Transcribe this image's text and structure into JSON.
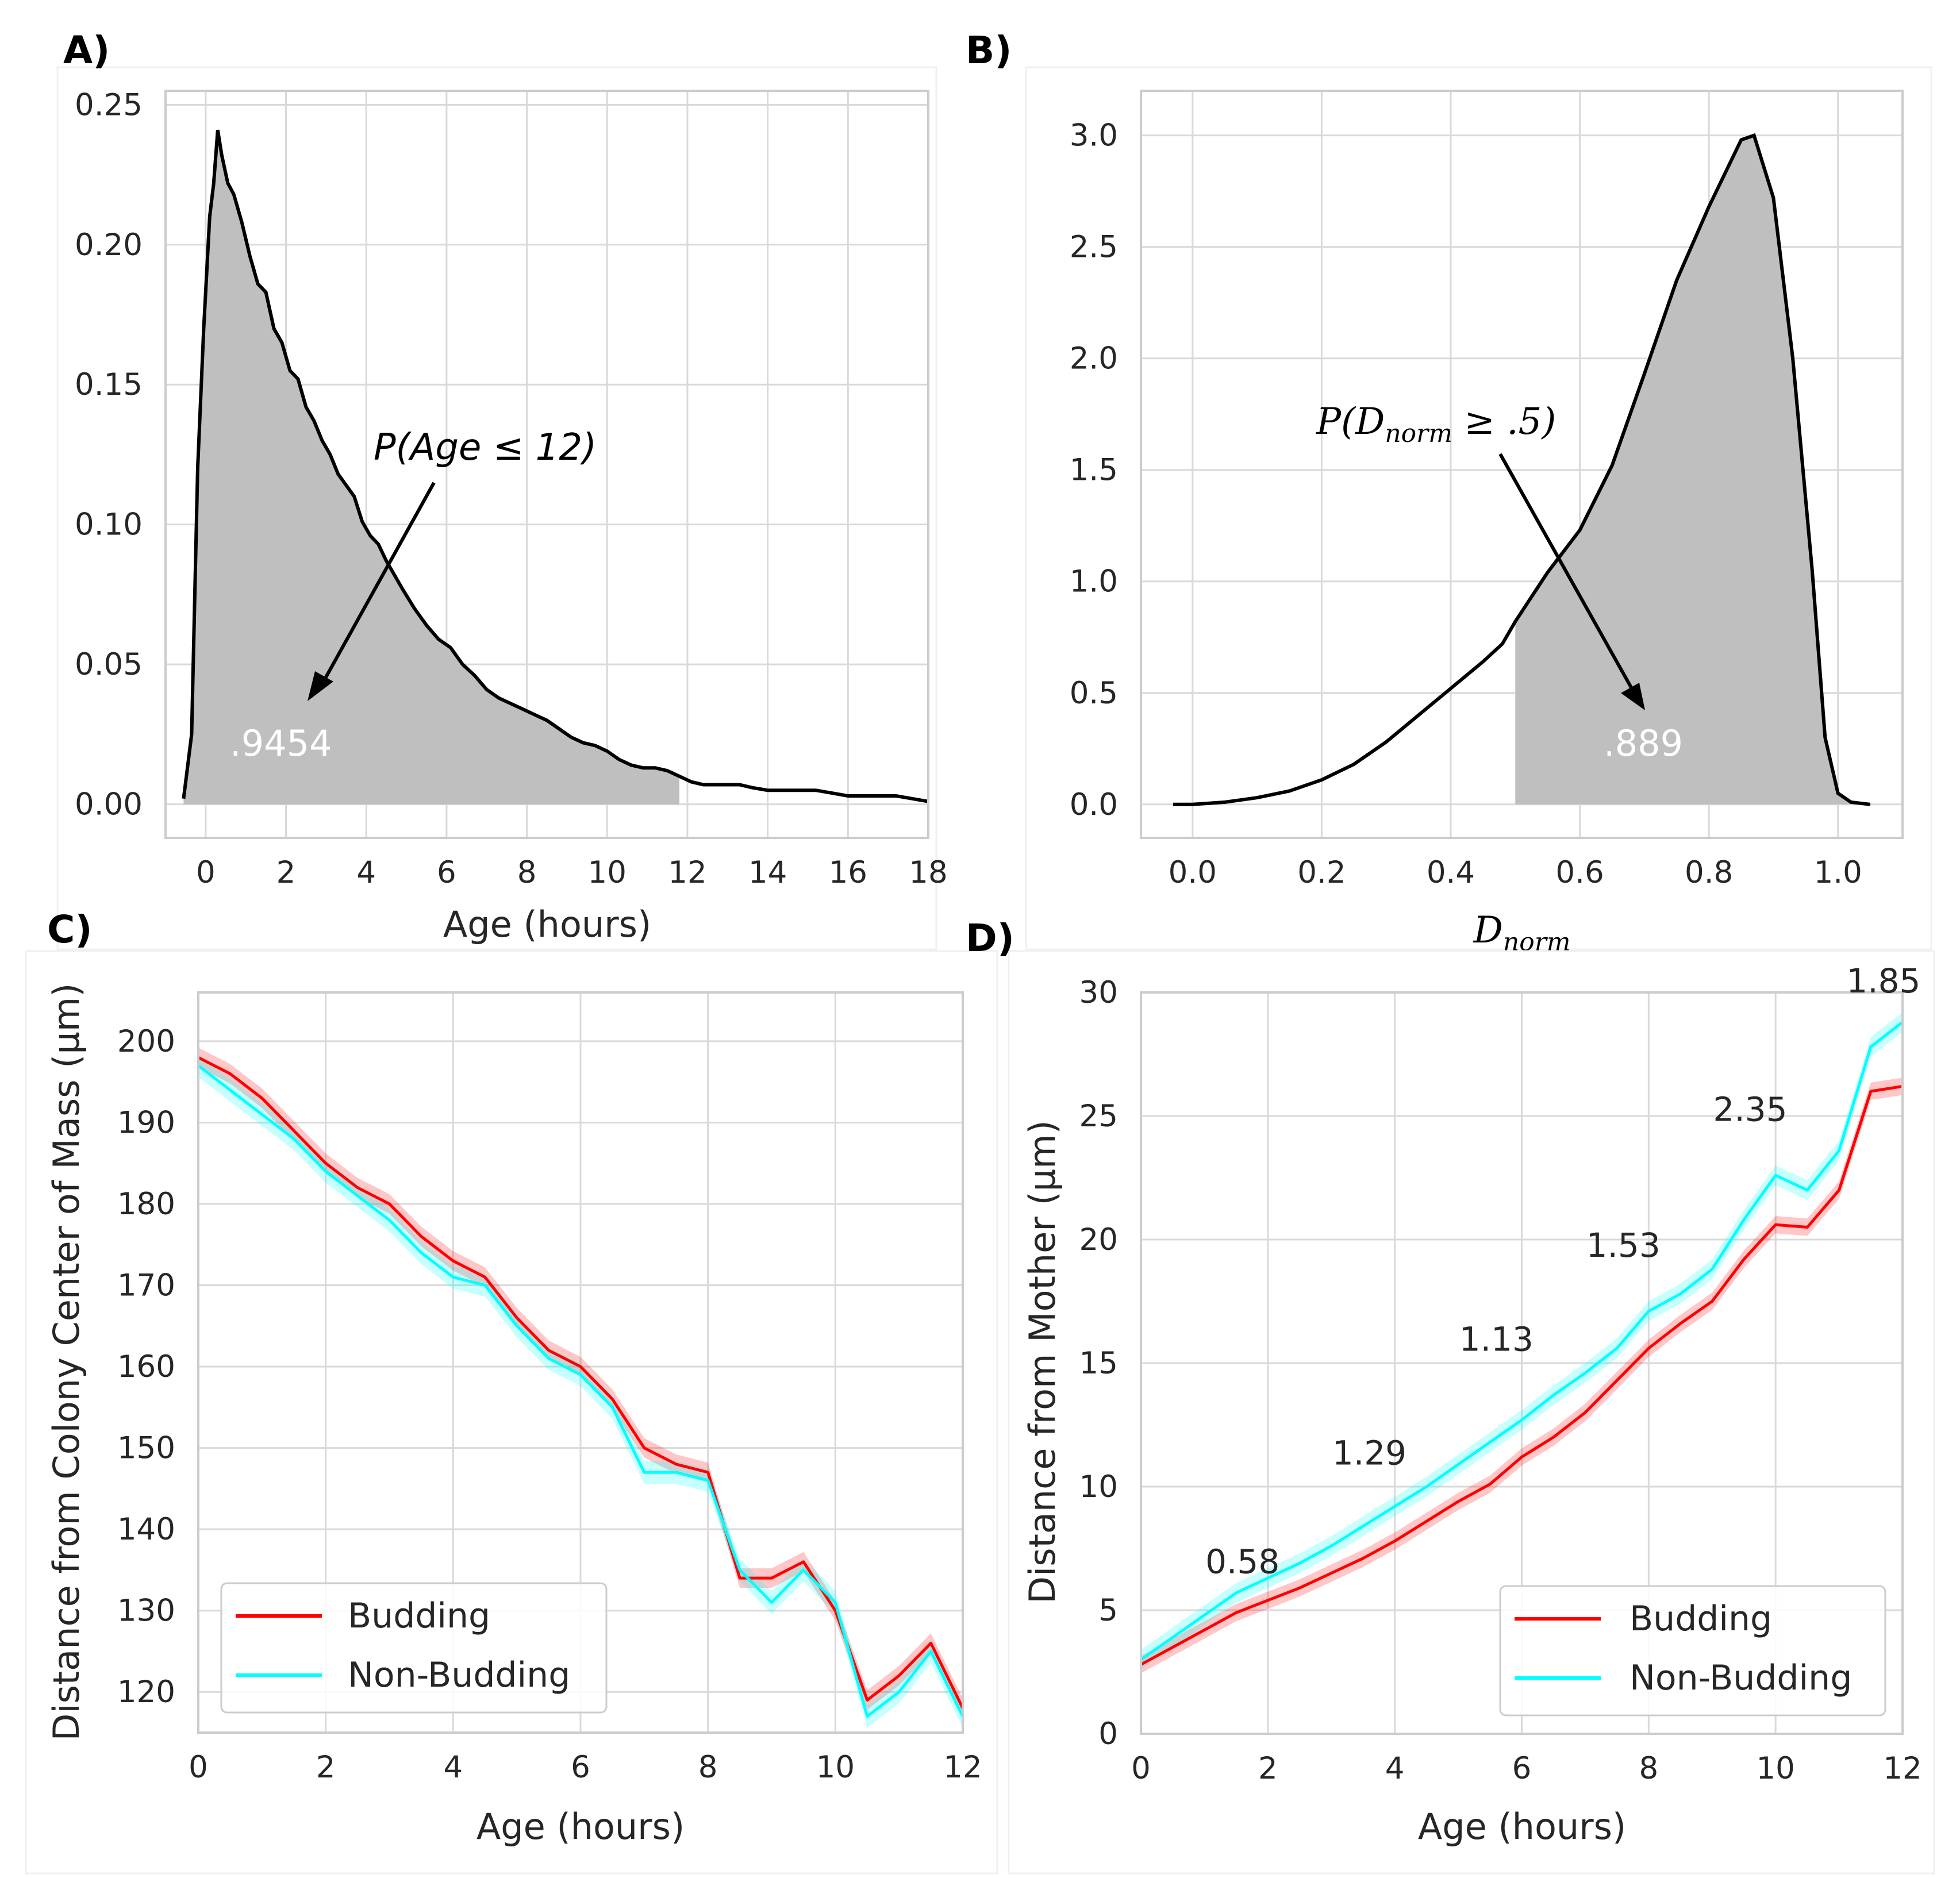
{
  "chart_data": [
    {
      "id": "A",
      "panel_label": "A)",
      "type": "area",
      "xlabel": "Age (hours)",
      "ylabel": "",
      "xlim": [
        -1,
        18
      ],
      "ylim": [
        -0.012,
        0.255
      ],
      "xticks": [
        0,
        2,
        4,
        6,
        8,
        10,
        12,
        14,
        16,
        18
      ],
      "yticks": [
        "0.00",
        "0.05",
        "0.10",
        "0.15",
        "0.20",
        "0.25"
      ],
      "grid": true,
      "fill_until": 11.8,
      "annotation": {
        "prefix": "P(Age ≤ 12)",
        "value": ".9454"
      },
      "curve": {
        "x": [
          -0.55,
          -0.35,
          -0.2,
          -0.05,
          0.1,
          0.2,
          0.3,
          0.4,
          0.55,
          0.7,
          0.9,
          1.1,
          1.3,
          1.5,
          1.7,
          1.9,
          2.1,
          2.3,
          2.5,
          2.7,
          2.9,
          3.1,
          3.3,
          3.5,
          3.7,
          3.9,
          4.1,
          4.3,
          4.5,
          4.7,
          4.9,
          5.2,
          5.5,
          5.8,
          6.1,
          6.4,
          6.7,
          7.0,
          7.3,
          7.6,
          7.9,
          8.2,
          8.5,
          8.8,
          9.1,
          9.4,
          9.7,
          10.0,
          10.3,
          10.6,
          10.9,
          11.2,
          11.5,
          11.8,
          12.1,
          12.4,
          12.7,
          13.0,
          13.3,
          13.6,
          14.0,
          14.4,
          14.8,
          15.2,
          15.6,
          16.0,
          16.4,
          16.8,
          17.2,
          17.6,
          18.0
        ],
        "y": [
          0.002,
          0.025,
          0.12,
          0.17,
          0.21,
          0.222,
          0.241,
          0.232,
          0.222,
          0.218,
          0.208,
          0.196,
          0.186,
          0.183,
          0.17,
          0.165,
          0.155,
          0.152,
          0.142,
          0.137,
          0.13,
          0.125,
          0.118,
          0.114,
          0.11,
          0.101,
          0.096,
          0.093,
          0.087,
          0.082,
          0.077,
          0.07,
          0.064,
          0.059,
          0.056,
          0.05,
          0.046,
          0.041,
          0.038,
          0.036,
          0.034,
          0.032,
          0.03,
          0.027,
          0.024,
          0.022,
          0.021,
          0.019,
          0.016,
          0.014,
          0.013,
          0.013,
          0.012,
          0.01,
          0.008,
          0.007,
          0.007,
          0.007,
          0.007,
          0.006,
          0.005,
          0.005,
          0.005,
          0.005,
          0.004,
          0.003,
          0.003,
          0.003,
          0.003,
          0.002,
          0.001
        ]
      }
    },
    {
      "id": "B",
      "panel_label": "B)",
      "type": "area",
      "xlabel": "D_norm",
      "xlabel_main": "D",
      "xlabel_sub": "norm",
      "ylabel": "",
      "xlim": [
        -0.08,
        1.1
      ],
      "ylim": [
        -0.15,
        3.2
      ],
      "xticks": [
        "0.0",
        "0.2",
        "0.4",
        "0.6",
        "0.8",
        "1.0"
      ],
      "xtick_values": [
        0,
        0.2,
        0.4,
        0.6,
        0.8,
        1.0
      ],
      "yticks": [
        "0.0",
        "0.5",
        "1.0",
        "1.5",
        "2.0",
        "2.5",
        "3.0"
      ],
      "ytick_values": [
        0,
        0.5,
        1.0,
        1.5,
        2.0,
        2.5,
        3.0
      ],
      "grid": true,
      "fill_from": 0.5,
      "annotation": {
        "prefix_main": "P(D",
        "prefix_sub": "norm",
        "prefix_rest": " ≥ .5)",
        "value": ".889"
      },
      "curve": {
        "x": [
          -0.03,
          0.0,
          0.05,
          0.1,
          0.15,
          0.2,
          0.25,
          0.3,
          0.35,
          0.4,
          0.45,
          0.48,
          0.5,
          0.55,
          0.6,
          0.65,
          0.7,
          0.75,
          0.8,
          0.85,
          0.87,
          0.9,
          0.93,
          0.96,
          0.98,
          1.0,
          1.02,
          1.05
        ],
        "y": [
          0.0,
          0.0,
          0.01,
          0.03,
          0.06,
          0.11,
          0.18,
          0.28,
          0.4,
          0.52,
          0.64,
          0.72,
          0.82,
          1.04,
          1.23,
          1.52,
          1.93,
          2.35,
          2.68,
          2.98,
          3.0,
          2.72,
          2.0,
          1.05,
          0.3,
          0.05,
          0.01,
          0.0
        ]
      }
    },
    {
      "id": "C",
      "panel_label": "C)",
      "type": "line",
      "xlabel": "Age (hours)",
      "ylabel": "Distance from Colony Center of Mass (μm)",
      "xlim": [
        0,
        12
      ],
      "ylim": [
        115,
        206
      ],
      "xticks": [
        0,
        2,
        4,
        6,
        8,
        10,
        12
      ],
      "yticks": [
        120,
        130,
        140,
        150,
        160,
        170,
        180,
        190,
        200
      ],
      "grid": true,
      "legend": "lower-left",
      "x": [
        0,
        0.5,
        1,
        1.5,
        2,
        2.5,
        3,
        3.5,
        4,
        4.5,
        5,
        5.5,
        6,
        6.5,
        7,
        7.5,
        8,
        8.5,
        9,
        9.5,
        10,
        10.5,
        11,
        11.5,
        12
      ],
      "series": [
        {
          "name": "Budding",
          "color": "#ff0000",
          "band": 1.2,
          "values": [
            198,
            196,
            193,
            189,
            185,
            182,
            180,
            176,
            173,
            171,
            166,
            162,
            160,
            156,
            150,
            148,
            147,
            134,
            134,
            136,
            130,
            119,
            122,
            126,
            118
          ]
        },
        {
          "name": "Non-Budding",
          "color": "#00ffff",
          "band": 1.4,
          "values": [
            197,
            194,
            191,
            188,
            184,
            181,
            178,
            174,
            171,
            170,
            165,
            161,
            159,
            155,
            147,
            147,
            146,
            135,
            131,
            135,
            131,
            117,
            120,
            125,
            117
          ]
        }
      ]
    },
    {
      "id": "D",
      "panel_label": "D)",
      "type": "line",
      "xlabel": "Age (hours)",
      "ylabel": "Distance from Mother (μm)",
      "xlim": [
        0,
        12
      ],
      "ylim": [
        0,
        30
      ],
      "xticks": [
        0,
        2,
        4,
        6,
        8,
        10,
        12
      ],
      "yticks": [
        0,
        5,
        10,
        15,
        20,
        25,
        30
      ],
      "grid": true,
      "legend": "lower-right",
      "x": [
        0,
        0.5,
        1,
        1.5,
        2,
        2.5,
        3,
        3.5,
        4,
        4.5,
        5,
        5.5,
        6,
        6.5,
        7,
        7.5,
        8,
        8.5,
        9,
        9.5,
        10,
        10.5,
        11,
        11.5,
        12
      ],
      "series": [
        {
          "name": "Budding",
          "color": "#ff0000",
          "band": 0.35,
          "values": [
            2.8,
            3.5,
            4.2,
            4.9,
            5.4,
            5.9,
            6.5,
            7.1,
            7.8,
            8.6,
            9.4,
            10.1,
            11.2,
            12.0,
            13.0,
            14.3,
            15.6,
            16.6,
            17.5,
            19.2,
            20.6,
            20.5,
            22.0,
            26.0,
            26.2
          ]
        },
        {
          "name": "Non-Budding",
          "color": "#00ffff",
          "band": 0.4,
          "values": [
            3.0,
            3.9,
            4.8,
            5.7,
            6.3,
            6.9,
            7.6,
            8.4,
            9.2,
            10.0,
            10.9,
            11.8,
            12.7,
            13.7,
            14.6,
            15.6,
            17.1,
            17.8,
            18.8,
            20.8,
            22.6,
            22.0,
            23.6,
            27.8,
            28.8
          ]
        }
      ],
      "annotations": [
        {
          "x": 1.6,
          "y": 6.5,
          "text": "0.58"
        },
        {
          "x": 3.6,
          "y": 10.9,
          "text": "1.29"
        },
        {
          "x": 5.6,
          "y": 15.5,
          "text": "1.13"
        },
        {
          "x": 7.6,
          "y": 19.3,
          "text": "1.53"
        },
        {
          "x": 9.6,
          "y": 24.8,
          "text": "2.35"
        },
        {
          "x": 11.7,
          "y": 30.0,
          "text": "1.85"
        }
      ]
    }
  ]
}
